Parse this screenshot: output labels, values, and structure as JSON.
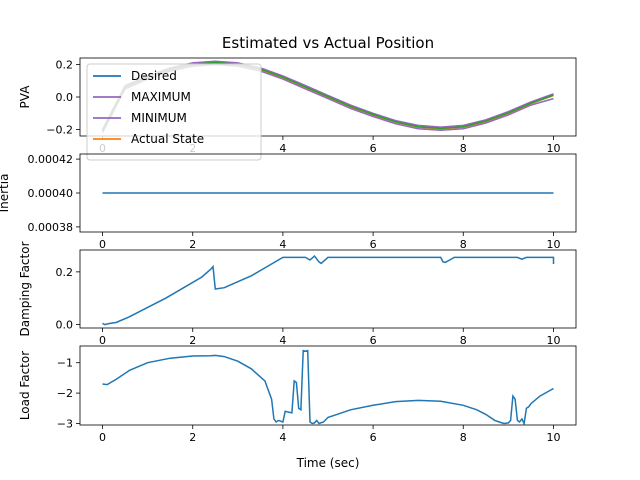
{
  "chart_data": {
    "title": "Estimated vs Actual Position",
    "x_label": "Time (sec)",
    "x_range": [
      -0.5,
      10.5
    ],
    "x_ticks": [
      "0",
      "2",
      "4",
      "6",
      "8",
      "10"
    ],
    "colors": {
      "blue": "#1f77b4",
      "purple": "#9467bd",
      "orange": "#ff7f0e",
      "green": "#2ca02c"
    },
    "panels": [
      {
        "type": "line",
        "ylabel": "PVA",
        "ylim": [
          -0.24,
          0.24
        ],
        "y_ticks": [
          {
            "v": 0.2,
            "label": "0.2"
          },
          {
            "v": 0.0,
            "label": "0.0"
          },
          {
            "v": -0.2,
            "label": "−0.2"
          }
        ],
        "legend": {
          "position": "upper-left",
          "entries": [
            "Desired",
            "MAXIMUM",
            "MINIMUM",
            "Actual State"
          ]
        },
        "series": [
          {
            "name": "Desired",
            "color": "#1f77b4",
            "x": [
              0,
              0.5,
              1,
              1.5,
              2,
              2.5,
              3,
              3.5,
              4,
              4.5,
              5,
              5.5,
              6,
              6.5,
              7,
              7.5,
              8,
              8.5,
              9,
              9.5,
              10
            ],
            "y": [
              -0.21,
              0.06,
              0.12,
              0.17,
              0.2,
              0.21,
              0.2,
              0.17,
              0.12,
              0.06,
              0.0,
              -0.06,
              -0.11,
              -0.155,
              -0.185,
              -0.195,
              -0.185,
              -0.15,
              -0.1,
              -0.04,
              0.01
            ]
          },
          {
            "name": "MAXIMUM",
            "color": "#9467bd",
            "x": [
              0,
              0.5,
              1,
              1.5,
              2,
              2.5,
              3,
              3.5,
              4,
              4.5,
              5,
              5.5,
              6,
              6.5,
              7,
              7.5,
              8,
              8.5,
              9,
              9.5,
              10
            ],
            "y": [
              -0.2,
              0.07,
              0.13,
              0.18,
              0.21,
              0.22,
              0.21,
              0.18,
              0.13,
              0.07,
              0.01,
              -0.05,
              -0.1,
              -0.145,
              -0.175,
              -0.185,
              -0.175,
              -0.14,
              -0.09,
              -0.03,
              0.02
            ]
          },
          {
            "name": "MINIMUM",
            "color": "#9467bd",
            "x": [
              0,
              0.5,
              1,
              1.5,
              2,
              2.5,
              3,
              3.5,
              4,
              4.5,
              5,
              5.5,
              6,
              6.5,
              7,
              7.5,
              8,
              8.5,
              9,
              9.5,
              10
            ],
            "y": [
              -0.22,
              0.05,
              0.11,
              0.16,
              0.19,
              0.2,
              0.19,
              0.16,
              0.11,
              0.05,
              -0.01,
              -0.07,
              -0.12,
              -0.165,
              -0.195,
              -0.205,
              -0.195,
              -0.16,
              -0.11,
              -0.05,
              -0.01
            ]
          },
          {
            "name": "Actual State",
            "color": "#ff7f0e",
            "x": [
              0,
              0.5,
              1,
              1.5,
              2,
              2.5,
              3,
              3.5,
              4,
              4.5,
              5,
              5.5,
              6,
              6.5,
              7,
              7.5,
              8,
              8.5,
              9,
              9.5,
              10
            ],
            "y": [
              -0.21,
              0.06,
              0.12,
              0.17,
              0.2,
              0.21,
              0.2,
              0.17,
              0.12,
              0.06,
              0.0,
              -0.06,
              -0.11,
              -0.155,
              -0.185,
              -0.195,
              -0.185,
              -0.15,
              -0.1,
              -0.04,
              0.01
            ]
          },
          {
            "name": "",
            "color": "#2ca02c",
            "x": [
              0,
              0.5,
              1,
              1.5,
              2,
              2.5,
              3,
              3.5,
              4,
              4.5,
              5,
              5.5,
              6,
              6.5,
              7,
              7.5,
              8,
              8.5,
              9,
              9.5,
              10
            ],
            "y": [
              -0.21,
              0.062,
              0.122,
              0.172,
              0.202,
              0.212,
              0.202,
              0.172,
              0.122,
              0.062,
              0.002,
              -0.058,
              -0.108,
              -0.153,
              -0.183,
              -0.193,
              -0.183,
              -0.148,
              -0.098,
              -0.038,
              0.012
            ]
          }
        ]
      },
      {
        "type": "line",
        "ylabel": "Inertia",
        "ylim": [
          0.000377,
          0.000423
        ],
        "y_ticks": [
          {
            "v": 0.00042,
            "label": "0.00042"
          },
          {
            "v": 0.0004,
            "label": "0.00040"
          },
          {
            "v": 0.00038,
            "label": "0.00038"
          }
        ],
        "series": [
          {
            "name": "",
            "color": "#1f77b4",
            "x": [
              0,
              10
            ],
            "y": [
              0.0004,
              0.0004
            ]
          }
        ]
      },
      {
        "type": "line",
        "ylabel": "Damping Factor",
        "ylim": [
          -0.013,
          0.283
        ],
        "y_ticks": [
          {
            "v": 0.2,
            "label": "0.2"
          },
          {
            "v": 0.0,
            "label": "0.0"
          }
        ],
        "series": [
          {
            "name": "",
            "color": "#1f77b4",
            "x": [
              0,
              0.05,
              0.15,
              0.3,
              0.6,
              1.0,
              1.4,
              1.8,
              2.2,
              2.4,
              2.45,
              2.5,
              2.7,
              2.9,
              3.3,
              3.6,
              3.9,
              4.0,
              4.5,
              4.6,
              4.7,
              4.8,
              4.85,
              4.9,
              5.0,
              5.2,
              7.5,
              7.55,
              7.6,
              7.7,
              7.8,
              8.0,
              9.2,
              9.3,
              9.4,
              9.5,
              10.0,
              10.0
            ],
            "y": [
              0.005,
              0.0,
              0.004,
              0.008,
              0.03,
              0.065,
              0.1,
              0.14,
              0.18,
              0.21,
              0.22,
              0.135,
              0.14,
              0.155,
              0.185,
              0.215,
              0.245,
              0.255,
              0.255,
              0.245,
              0.26,
              0.238,
              0.232,
              0.24,
              0.255,
              0.255,
              0.255,
              0.238,
              0.236,
              0.245,
              0.255,
              0.255,
              0.255,
              0.248,
              0.255,
              0.255,
              0.255,
              0.23
            ]
          }
        ]
      },
      {
        "type": "line",
        "ylabel": "Load Factor",
        "ylim": [
          -3.05,
          -0.45
        ],
        "y_ticks": [
          {
            "v": -1,
            "label": "−1"
          },
          {
            "v": -2,
            "label": "−2"
          },
          {
            "v": -3,
            "label": "−3"
          }
        ],
        "series": [
          {
            "name": "",
            "color": "#1f77b4",
            "x": [
              0,
              0.1,
              0.3,
              0.6,
              1.0,
              1.5,
              2.0,
              2.4,
              2.5,
              2.7,
              3.0,
              3.3,
              3.6,
              3.75,
              3.8,
              3.85,
              3.9,
              4.0,
              4.05,
              4.1,
              4.2,
              4.25,
              4.3,
              4.35,
              4.4,
              4.45,
              4.5,
              4.55,
              4.6,
              4.65,
              4.7,
              4.75,
              4.8,
              4.9,
              5.0,
              5.2,
              5.5,
              6.0,
              6.5,
              7.0,
              7.5,
              8.0,
              8.3,
              8.5,
              8.7,
              8.8,
              8.9,
              9.0,
              9.05,
              9.1,
              9.15,
              9.2,
              9.25,
              9.3,
              9.35,
              9.4,
              9.45,
              9.5,
              9.7,
              10.0
            ],
            "y": [
              -1.7,
              -1.72,
              -1.55,
              -1.25,
              -1.0,
              -0.85,
              -0.78,
              -0.77,
              -0.76,
              -0.8,
              -0.95,
              -1.2,
              -1.6,
              -2.2,
              -2.85,
              -2.95,
              -2.9,
              -2.95,
              -2.6,
              -2.62,
              -2.65,
              -1.6,
              -1.65,
              -2.5,
              -2.55,
              -0.6,
              -0.62,
              -0.6,
              -2.95,
              -3.0,
              -2.98,
              -2.9,
              -3.0,
              -2.95,
              -2.8,
              -2.7,
              -2.55,
              -2.4,
              -2.28,
              -2.24,
              -2.27,
              -2.4,
              -2.55,
              -2.7,
              -2.9,
              -2.95,
              -3.0,
              -2.98,
              -2.9,
              -2.1,
              -2.2,
              -2.9,
              -2.95,
              -2.85,
              -3.0,
              -2.5,
              -2.45,
              -2.35,
              -2.1,
              -1.85
            ]
          }
        ]
      }
    ]
  }
}
